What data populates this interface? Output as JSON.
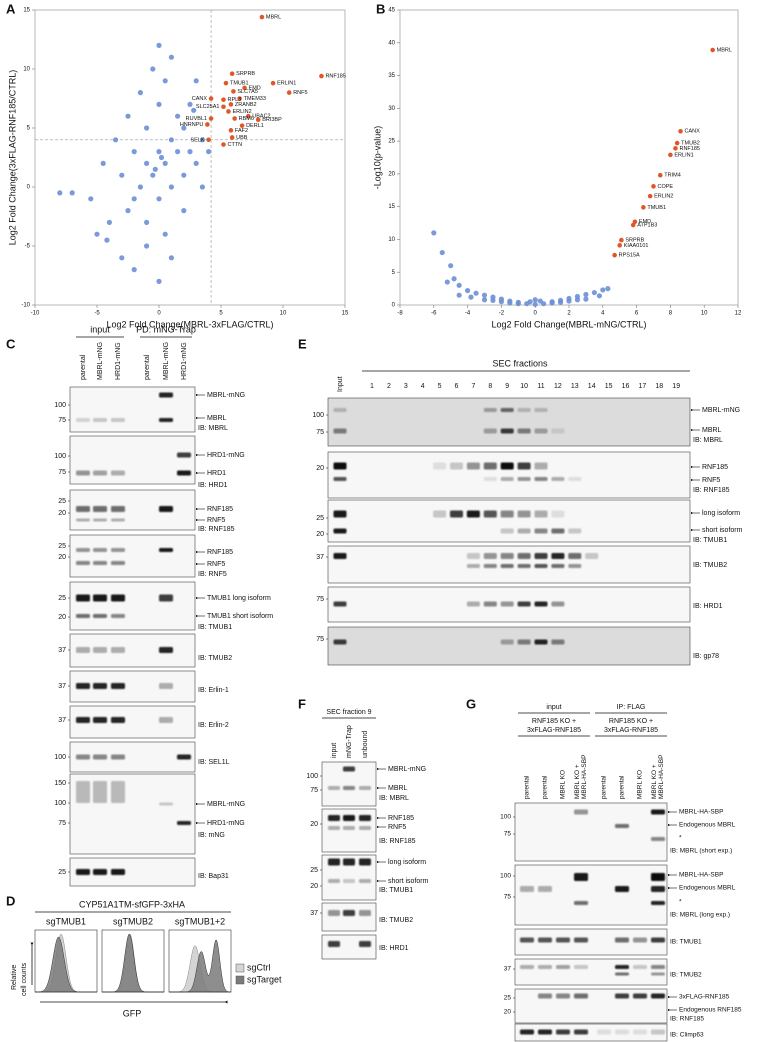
{
  "panel_letters": [
    "A",
    "B",
    "C",
    "D",
    "E",
    "F",
    "G"
  ],
  "chart_data": [
    {
      "type": "scatter",
      "xlabel": "Log2 Fold Change(MBRL-3xFLAG/CTRL)",
      "ylabel": "Log2 Fold Change(3xFLAG-RNF185/CTRL)",
      "xlim": [
        -10,
        15
      ],
      "xticks": [
        -10,
        -5,
        0,
        5,
        10,
        15
      ],
      "ylim": [
        -10,
        15
      ],
      "yticks": [
        -10,
        -5,
        0,
        5,
        10,
        15
      ],
      "reference_lines": {
        "x": 4.2,
        "y": 4
      },
      "points": {
        "color": "#6b8fd6",
        "x": [
          -8,
          -7,
          -5.5,
          -5,
          -4.5,
          -4,
          -3.5,
          -3,
          -3,
          -2.5,
          -2.5,
          -2,
          -2,
          -1.5,
          -1.5,
          -1,
          -1,
          -1,
          -0.5,
          -0.5,
          0,
          0,
          0,
          0,
          0.5,
          0.5,
          0.5,
          1,
          1,
          1,
          1.5,
          1.5,
          2,
          2,
          2,
          2.5,
          2.5,
          3,
          3,
          3.5,
          3.5,
          4,
          -1,
          0,
          1,
          -2,
          0.2,
          -0.3,
          2.8,
          -4.2
        ],
        "values": [
          -0.5,
          -0.5,
          -1,
          -4,
          2,
          -3,
          4,
          -6,
          1,
          6,
          -2,
          3,
          -1,
          8,
          0,
          5,
          2,
          -3,
          10,
          1,
          12,
          3,
          -1,
          7,
          2,
          -4,
          9,
          4,
          0,
          11,
          3,
          6,
          1,
          5,
          -2,
          3,
          7,
          2,
          9,
          4,
          0,
          3,
          -5,
          -8,
          -6,
          -7,
          2.5,
          1.5,
          6.5,
          -4.5
        ]
      },
      "highlighted": {
        "color": "#e0572a",
        "labels": [
          "MBRL",
          "RNF185",
          "SRPRB",
          "TMUB1",
          "ERLIN1",
          "EMD",
          "RNF5",
          "SLC7A5",
          "CANX",
          "TMEM33",
          "RPL3",
          "SLC25A1",
          "ZRANB2",
          "ERLIN2",
          "UBAC2",
          "RBM6",
          "BRI3BP",
          "RUVBL1",
          "DERL1",
          "FAF2",
          "HNRNPU",
          "UBB",
          "SELK",
          "CTTN"
        ],
        "x": [
          8.3,
          13.1,
          5.9,
          5.4,
          9.2,
          6.9,
          10.5,
          6.0,
          4.2,
          6.5,
          5.2,
          5.2,
          5.8,
          5.6,
          7.2,
          6.1,
          8.0,
          4.2,
          6.7,
          5.8,
          3.9,
          5.9,
          4.0,
          5.2
        ],
        "values": [
          14.4,
          9.4,
          9.6,
          8.8,
          8.8,
          8.4,
          8.0,
          8.1,
          7.5,
          7.5,
          7.4,
          6.8,
          7.0,
          6.4,
          6.0,
          5.8,
          5.7,
          5.8,
          5.2,
          4.8,
          5.3,
          4.2,
          4.0,
          3.6
        ]
      }
    },
    {
      "type": "scatter",
      "xlabel": "Log2 Fold Change(MBRL-mNG/CTRL)",
      "ylabel": "-Log10(p-value)",
      "xlim": [
        -8,
        12
      ],
      "xticks": [
        -8,
        -6,
        -4,
        -2,
        0,
        2,
        4,
        6,
        8,
        10,
        12
      ],
      "ylim": [
        0,
        45
      ],
      "yticks": [
        0,
        5,
        10,
        15,
        20,
        25,
        30,
        35,
        40,
        45
      ],
      "points": {
        "color": "#6b8fd6",
        "x": [
          -6,
          -5.5,
          -5,
          -4.8,
          -4.5,
          -4,
          -3.5,
          -3,
          -2.5,
          -2,
          -1.5,
          -1,
          -0.5,
          0,
          0.5,
          1,
          1.5,
          2,
          2.5,
          3,
          3.5,
          4,
          -3,
          -2,
          -1,
          1,
          2,
          3,
          -4.5,
          -5.2,
          -3.8,
          0.3,
          -0.3,
          2.5,
          3.8,
          -1.5,
          1.5,
          -2.5,
          0,
          4.3
        ],
        "values": [
          11,
          8,
          6,
          4,
          3,
          2.2,
          1.8,
          1.5,
          1.2,
          0.9,
          0.6,
          0.4,
          0.2,
          0.1,
          0.2,
          0.5,
          0.7,
          1,
          1.3,
          1.6,
          1.9,
          2.3,
          0.8,
          0.5,
          0.2,
          0.3,
          0.6,
          0.9,
          1.5,
          3.5,
          1.2,
          0.6,
          0.5,
          0.8,
          1.4,
          0.3,
          0.4,
          0.7,
          0.8,
          2.5
        ]
      },
      "highlighted": {
        "color": "#e0572a",
        "labels": [
          "MBRL",
          "CANX",
          "TMUB2",
          "RNF185",
          "ERLIN1",
          "TRIM4",
          "COPE",
          "ERLIN2",
          "TMUB1",
          "EMD",
          "ATP1B3",
          "SRPRB",
          "KIAA0101",
          "RPS15A"
        ],
        "x": [
          10.5,
          8.6,
          8.4,
          8.3,
          8.0,
          7.4,
          7.0,
          6.8,
          6.4,
          5.9,
          5.8,
          5.1,
          5.0,
          4.7
        ],
        "values": [
          38.9,
          26.5,
          24.7,
          23.9,
          22.9,
          19.8,
          18.1,
          16.6,
          14.9,
          12.7,
          12.2,
          9.9,
          9.1,
          7.6
        ]
      }
    }
  ],
  "panels": {
    "panel_c": {
      "headers": [
        "input",
        "PD: mNG-Trap"
      ],
      "lanes": [
        "parental",
        "MBRL-mNG",
        "HRD1-mNG",
        "parental",
        "MBRL-mNG",
        "HRD1-mNG"
      ],
      "strips": [
        {
          "markers": [
            "100",
            "75"
          ],
          "labels": [
            "MBRL-mNG",
            "MBRL"
          ],
          "ib": "IB: MBRL"
        },
        {
          "markers": [
            "100",
            "75"
          ],
          "labels": [
            "HRD1-mNG",
            "HRD1"
          ],
          "ib": "IB: HRD1"
        },
        {
          "markers": [
            "25",
            "20"
          ],
          "labels": [
            "RNF185",
            "RNF5"
          ],
          "ib": "IB: RNF185"
        },
        {
          "markers": [
            "25",
            "20"
          ],
          "labels": [
            "RNF185",
            "RNF5"
          ],
          "ib": "IB: RNF5"
        },
        {
          "markers": [
            "25",
            "20"
          ],
          "labels": [
            "TMUB1 long isoform",
            "TMUB1 short isoform"
          ],
          "ib": "IB: TMUB1"
        },
        {
          "markers": [
            "37"
          ],
          "ib": "IB: TMUB2"
        },
        {
          "markers": [
            "37"
          ],
          "ib": "IB: Erlin-1"
        },
        {
          "markers": [
            "37"
          ],
          "ib": "IB: Erlin-2"
        },
        {
          "markers": [
            "100"
          ],
          "ib": "IB: SEL1L"
        },
        {
          "markers": [
            "150",
            "100",
            "75"
          ],
          "labels": [
            "MBRL-mNG",
            "HRD1-mNG"
          ],
          "ib": "IB: mNG"
        },
        {
          "markers": [
            "25"
          ],
          "ib": "IB: Bap31"
        }
      ]
    },
    "panel_d": {
      "title": "CYP51A1TM-sfGFP-3xHA",
      "samples": [
        "sgTMUB1",
        "sgTMUB2",
        "sgTMUB1+2"
      ],
      "ylabel": [
        "Relative",
        "cell counts"
      ],
      "xlabel": "GFP",
      "legend": [
        "sgCtrl",
        "sgTarget"
      ]
    },
    "panel_e": {
      "header": "SEC fractions",
      "lanes": [
        "Input",
        "1",
        "2",
        "3",
        "4",
        "5",
        "6",
        "7",
        "8",
        "9",
        "10",
        "11",
        "12",
        "13",
        "14",
        "15",
        "16",
        "17",
        "18",
        "19"
      ],
      "strips": [
        {
          "markers": [
            "100",
            "75"
          ],
          "labels": [
            "MBRL-mNG",
            "MBRL"
          ],
          "ib": "IB: MBRL"
        },
        {
          "markers": [
            "20"
          ],
          "labels": [
            "RNF185",
            "RNF5"
          ],
          "ib": "IB: RNF185"
        },
        {
          "markers": [
            "25",
            "20"
          ],
          "labels": [
            "long isoform",
            "short isoform"
          ],
          "ib": "IB: TMUB1"
        },
        {
          "markers": [
            "37"
          ],
          "ib": "IB: TMUB2"
        },
        {
          "markers": [
            "75"
          ],
          "ib": "IB: HRD1"
        },
        {
          "markers": [
            "75"
          ],
          "ib": "IB: gp78"
        }
      ]
    },
    "panel_f": {
      "header": "SEC fraction 9",
      "lanes": [
        "input",
        "mNG-Trap",
        "unbound"
      ],
      "strips": [
        {
          "markers": [
            "100",
            "75"
          ],
          "labels": [
            "MBRL-mNG",
            "MBRL"
          ],
          "ib": "IB: MBRL"
        },
        {
          "markers": [
            "20"
          ],
          "labels": [
            "RNF185",
            "RNF5"
          ],
          "ib": "IB: RNF185"
        },
        {
          "markers": [
            "25",
            "20"
          ],
          "labels": [
            "long isoform",
            "short isoform"
          ],
          "ib": "IB: TMUB1"
        },
        {
          "markers": [
            "37"
          ],
          "ib": "IB: TMUB2"
        },
        {
          "ib": "IB: HRD1"
        }
      ]
    },
    "panel_g": {
      "headers": [
        "input",
        "IP: FLAG"
      ],
      "subheaders": [
        [
          "RNF185 KO +",
          "3xFLAG-RNF185"
        ],
        [
          "RNF185 KO +",
          "3xFLAG-RNF185"
        ]
      ],
      "lanes": [
        "parental",
        "parental",
        "MBRL KO",
        [
          "MBRL KO +",
          "MBRL-HA-SBP"
        ],
        "parental",
        "parental",
        "MBRL KO",
        [
          "MBRL KO +",
          "MBRL-HA-SBP"
        ]
      ],
      "strips": [
        {
          "markers": [
            "100",
            "75"
          ],
          "labels": [
            "MBRL-HA-SBP",
            "Endogenous MBRL",
            "*"
          ],
          "ib": "IB: MBRL (short exp.)"
        },
        {
          "markers": [
            "100",
            "75"
          ],
          "labels": [
            "MBRL-HA-SBP",
            "Endogenous MBRL",
            "*"
          ],
          "ib": "IB: MBRL (long exp.)"
        },
        {
          "ib": "IB: TMUB1"
        },
        {
          "markers": [
            "37"
          ],
          "ib": "IB: TMUB2"
        },
        {
          "markers": [
            "25",
            "20"
          ],
          "labels": [
            "3xFLAG-RNF185",
            "Endogenous RNF185"
          ],
          "ib": "IB: RNF185"
        },
        {
          "ib": "IB: Climp63"
        }
      ]
    }
  }
}
